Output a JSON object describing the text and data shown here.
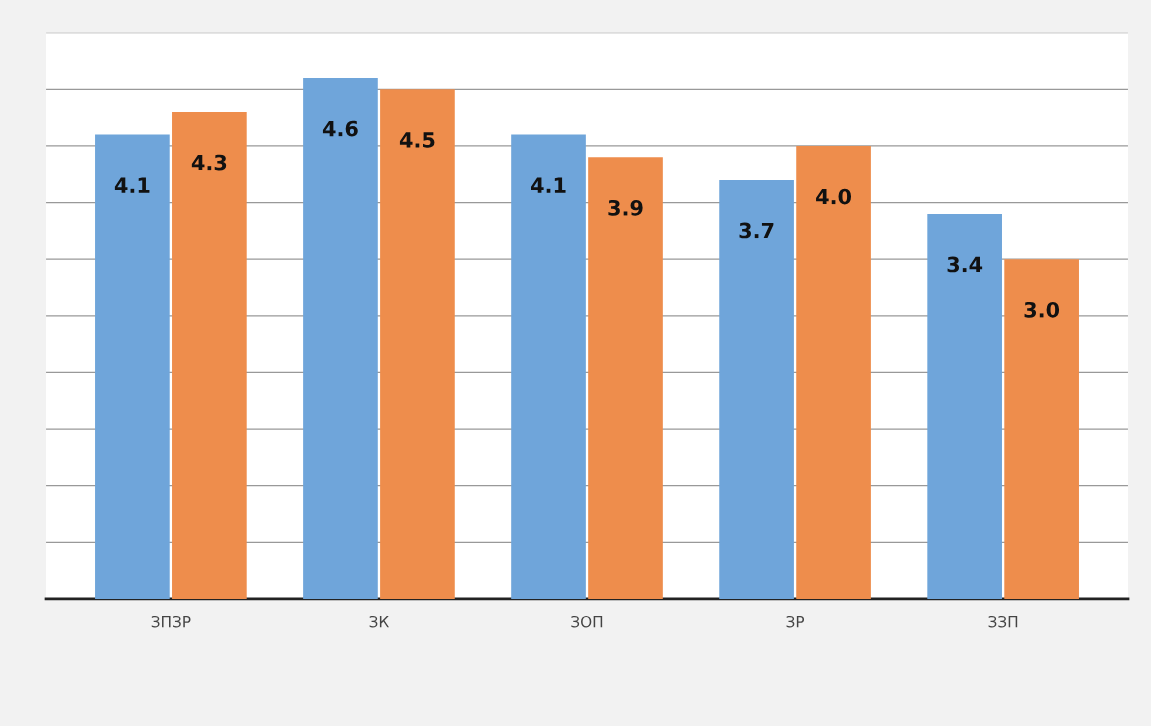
{
  "chart_data": {
    "type": "bar",
    "categories": [
      "ЗПЗР",
      "ЗК",
      "ЗОП",
      "ЗР",
      "ЗЗП"
    ],
    "series": [
      {
        "color": "#6fa5da",
        "values": [
          4.1,
          4.6,
          4.1,
          3.7,
          3.4
        ],
        "value_labels": [
          "4.1",
          "4.6",
          "4.1",
          "3.7",
          "3.4"
        ]
      },
      {
        "color": "#ee8d4c",
        "values": [
          4.3,
          4.5,
          3.9,
          4.0,
          3.0
        ],
        "value_labels": [
          "4.3",
          "4.5",
          "3.9",
          "4.0",
          "3.0"
        ]
      }
    ],
    "ylim": [
      0,
      5
    ],
    "yticks": [
      {
        "value": 0,
        "label": null
      },
      {
        "value": 0.5,
        "label": null
      },
      {
        "value": 1,
        "label": null
      },
      {
        "value": 1.5,
        "label": null
      },
      {
        "value": 2,
        "label": null
      },
      {
        "value": 2.5,
        "label": null
      },
      {
        "value": 3,
        "label": null
      },
      {
        "value": 3.5,
        "label": null
      },
      {
        "value": 4,
        "label": null
      },
      {
        "value": 4.5,
        "label": null
      },
      {
        "value": 5,
        "label": null
      }
    ],
    "grid": "y",
    "tick_labels": "x"
  }
}
